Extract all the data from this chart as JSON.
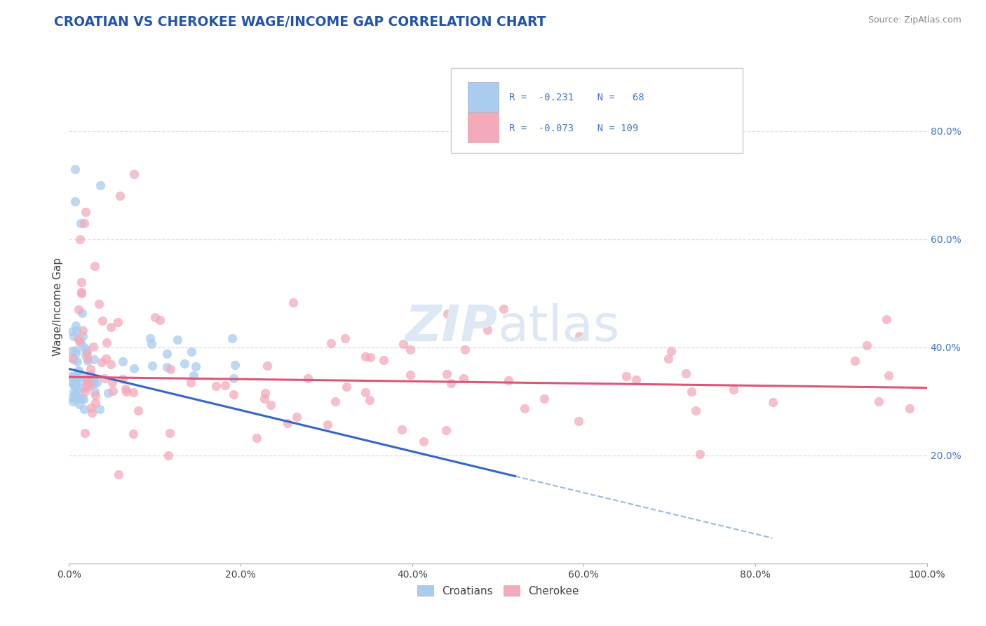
{
  "title": "CROATIAN VS CHEROKEE WAGE/INCOME GAP CORRELATION CHART",
  "source": "Source: ZipAtlas.com",
  "ylabel": "Wage/Income Gap",
  "title_color": "#2255aa",
  "source_color": "#888888",
  "background_color": "#ffffff",
  "plot_background": "#ffffff",
  "croatian_color": "#aaccee",
  "cherokee_color": "#f4aabb",
  "croatian_line_color": "#3366cc",
  "cherokee_line_color": "#dd5577",
  "dashed_line_color": "#99bbdd",
  "legend_border_color": "#cccccc",
  "watermark_color": "#dde8f4",
  "R_croatian": -0.231,
  "N_croatian": 68,
  "R_cherokee": -0.073,
  "N_cherokee": 109,
  "xlim": [
    0.0,
    1.0
  ],
  "ylim": [
    0.0,
    0.95
  ],
  "xtick_vals": [
    0.0,
    0.2,
    0.4,
    0.6,
    0.8,
    1.0
  ],
  "xticklabels": [
    "0.0%",
    "20.0%",
    "40.0%",
    "60.0%",
    "80.0%",
    "100.0%"
  ],
  "ytick_vals": [
    0.2,
    0.4,
    0.6,
    0.8
  ],
  "yticklabels_right": [
    "20.0%",
    "40.0%",
    "60.0%",
    "80.0%"
  ],
  "grid_color": "#ddddee",
  "tick_color": "#4477cc"
}
